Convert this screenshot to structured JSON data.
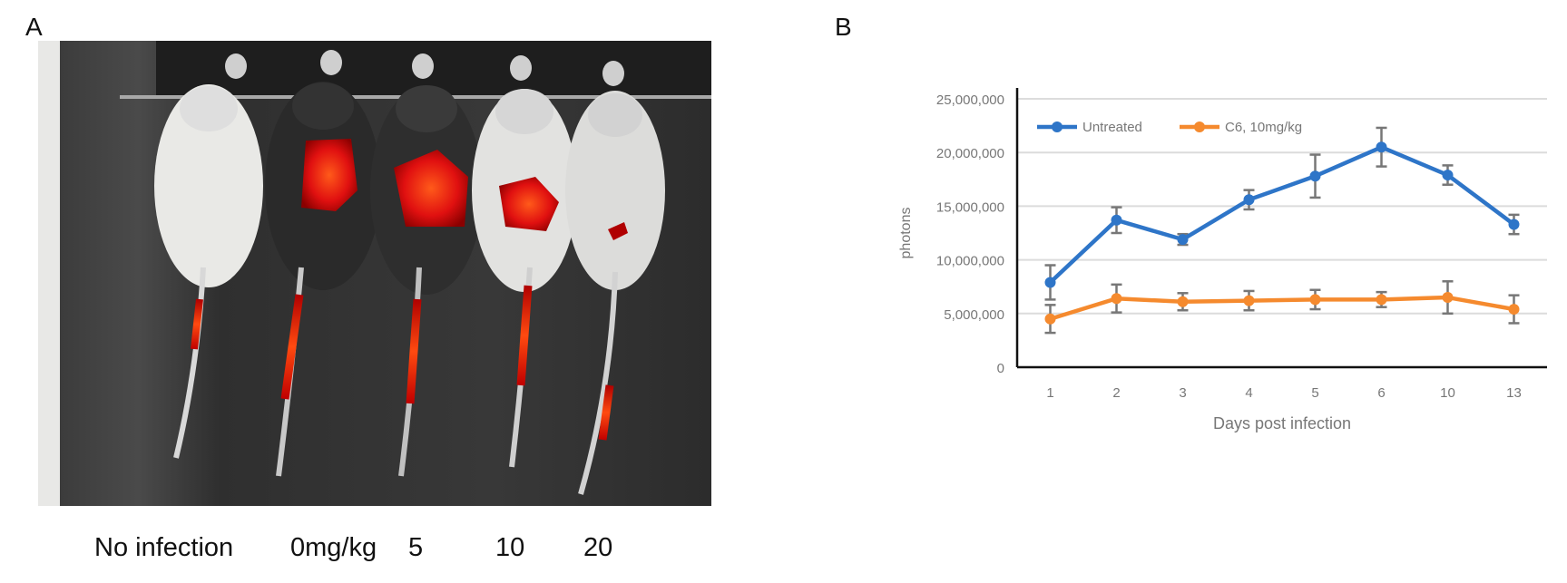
{
  "panel_a": {
    "letter": "A",
    "group_labels": [
      "No infection",
      "0mg/kg",
      "5",
      "10",
      "20"
    ]
  },
  "panel_b": {
    "letter": "B"
  },
  "chart_data": {
    "type": "line",
    "title": "",
    "xlabel": "Days post infection",
    "ylabel": "photons",
    "categories": [
      "1",
      "2",
      "3",
      "4",
      "5",
      "6",
      "10",
      "13"
    ],
    "ylim": [
      0,
      25000000
    ],
    "yticks": [
      0,
      5000000,
      10000000,
      15000000,
      20000000,
      25000000
    ],
    "ytick_labels": [
      "0",
      "5,000,000",
      "10,000,000",
      "15,000,000",
      "20,000,000",
      "25,000,000"
    ],
    "grid": true,
    "legend_position": "top-left",
    "series": [
      {
        "name": "Untreated",
        "color": "#2e75c8",
        "values": [
          7900000,
          13700000,
          11900000,
          15600000,
          17800000,
          20500000,
          17900000,
          13300000
        ],
        "errors": [
          1600000,
          1200000,
          500000,
          900000,
          2000000,
          1800000,
          900000,
          900000
        ]
      },
      {
        "name": "C6, 10mg/kg",
        "color": "#f58a2e",
        "values": [
          4500000,
          6400000,
          6100000,
          6200000,
          6300000,
          6300000,
          6500000,
          5400000
        ],
        "errors": [
          1300000,
          1300000,
          800000,
          900000,
          900000,
          700000,
          1500000,
          1300000
        ]
      }
    ]
  }
}
